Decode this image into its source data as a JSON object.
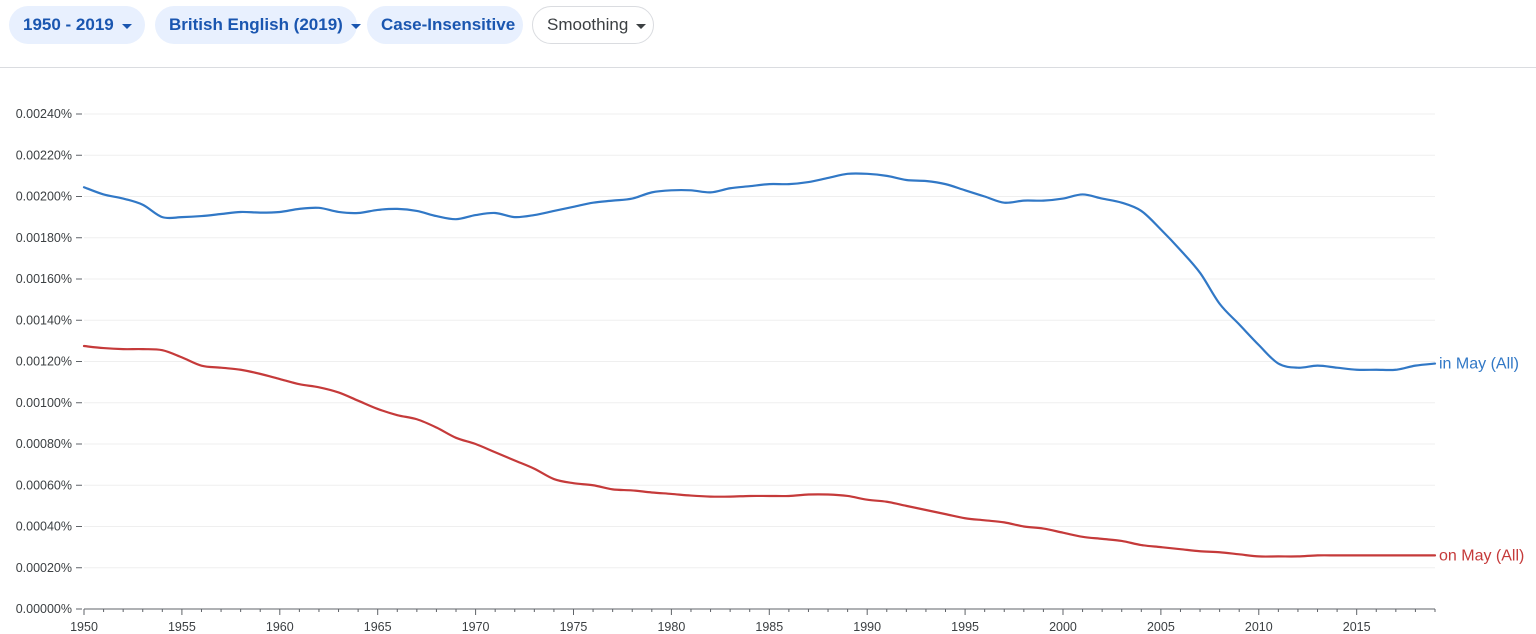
{
  "toolbar": {
    "range_label": "1950 - 2019",
    "corpus_label": "British English (2019)",
    "case_label": "Case-Insensitive",
    "smoothing_label": "Smoothing"
  },
  "colors": {
    "chip_bg": "#e8f0fe",
    "chip_text": "#1a56b0",
    "series_blue": "#3178c6",
    "series_red": "#c53a3a"
  },
  "chart_data": {
    "type": "line",
    "title": "",
    "xlabel": "",
    "ylabel": "",
    "xlim": [
      1950,
      2019
    ],
    "ylim": [
      0,
      0.0024
    ],
    "grid": true,
    "legend": "labels at line ends (right)",
    "y_ticks": [
      "0.00000%",
      "0.00020%",
      "0.00040%",
      "0.00060%",
      "0.00080%",
      "0.00100%",
      "0.00120%",
      "0.00140%",
      "0.00160%",
      "0.00180%",
      "0.00200%",
      "0.00220%",
      "0.00240%"
    ],
    "x_ticks": [
      "1950",
      "1955",
      "1960",
      "1965",
      "1970",
      "1975",
      "1980",
      "1985",
      "1990",
      "1995",
      "2000",
      "2005",
      "2010",
      "2015"
    ],
    "x": [
      1950,
      1951,
      1952,
      1953,
      1954,
      1955,
      1956,
      1957,
      1958,
      1959,
      1960,
      1961,
      1962,
      1963,
      1964,
      1965,
      1966,
      1967,
      1968,
      1969,
      1970,
      1971,
      1972,
      1973,
      1974,
      1975,
      1976,
      1977,
      1978,
      1979,
      1980,
      1981,
      1982,
      1983,
      1984,
      1985,
      1986,
      1987,
      1988,
      1989,
      1990,
      1991,
      1992,
      1993,
      1994,
      1995,
      1996,
      1997,
      1998,
      1999,
      2000,
      2001,
      2002,
      2003,
      2004,
      2005,
      2006,
      2007,
      2008,
      2009,
      2010,
      2011,
      2012,
      2013,
      2014,
      2015,
      2016,
      2017,
      2018,
      2019
    ],
    "series": [
      {
        "name": "in May (All)",
        "color": "#3178c6",
        "values": [
          0.002045,
          0.00201,
          0.00199,
          0.00196,
          0.0019,
          0.0019,
          0.001905,
          0.001915,
          0.001925,
          0.001922,
          0.001925,
          0.00194,
          0.001945,
          0.001925,
          0.00192,
          0.001935,
          0.00194,
          0.00193,
          0.001905,
          0.00189,
          0.00191,
          0.00192,
          0.0019,
          0.00191,
          0.00193,
          0.00195,
          0.00197,
          0.00198,
          0.00199,
          0.00202,
          0.00203,
          0.00203,
          0.00202,
          0.00204,
          0.00205,
          0.00206,
          0.00206,
          0.00207,
          0.00209,
          0.00211,
          0.00211,
          0.0021,
          0.00208,
          0.002075,
          0.00206,
          0.00203,
          0.002,
          0.00197,
          0.00198,
          0.00198,
          0.00199,
          0.00201,
          0.00199,
          0.00197,
          0.00193,
          0.00184,
          0.00174,
          0.00163,
          0.00148,
          0.00138,
          0.00128,
          0.00119,
          0.00117,
          0.00118,
          0.00117,
          0.00116,
          0.00116,
          0.00116,
          0.00118,
          0.00119
        ]
      },
      {
        "name": "on May (All)",
        "color": "#c53a3a",
        "values": [
          0.001275,
          0.001265,
          0.00126,
          0.00126,
          0.001255,
          0.00122,
          0.00118,
          0.00117,
          0.00116,
          0.00114,
          0.001115,
          0.00109,
          0.001075,
          0.00105,
          0.00101,
          0.00097,
          0.00094,
          0.00092,
          0.00088,
          0.00083,
          0.0008,
          0.00076,
          0.00072,
          0.00068,
          0.00063,
          0.00061,
          0.0006,
          0.00058,
          0.000575,
          0.000565,
          0.000558,
          0.00055,
          0.000545,
          0.000545,
          0.000548,
          0.000548,
          0.000548,
          0.000555,
          0.000555,
          0.000548,
          0.00053,
          0.00052,
          0.0005,
          0.00048,
          0.00046,
          0.00044,
          0.00043,
          0.00042,
          0.0004,
          0.00039,
          0.00037,
          0.00035,
          0.00034,
          0.00033,
          0.00031,
          0.0003,
          0.00029,
          0.00028,
          0.000275,
          0.000265,
          0.000255,
          0.000255,
          0.000255,
          0.00026,
          0.00026,
          0.00026,
          0.00026,
          0.00026,
          0.00026,
          0.00026
        ]
      }
    ]
  }
}
